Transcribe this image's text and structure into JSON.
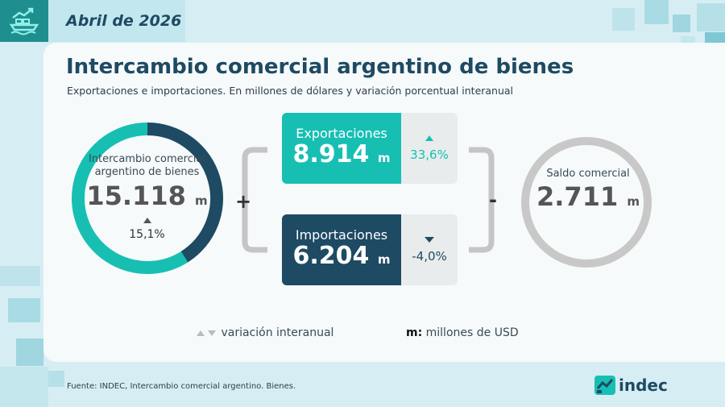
{
  "header": {
    "date": "Abril de 2026",
    "icon": "ship-chart-icon"
  },
  "title": "Intercambio comercial argentino de bienes",
  "subtitle": "Exportaciones e importaciones. En millones de dólares y variación porcentual interanual",
  "chart_data": {
    "type": "pie",
    "title": "Intercambio comercial argentino de bienes",
    "categories": [
      "Exportaciones",
      "Importaciones"
    ],
    "values": [
      8914,
      6204
    ],
    "total": {
      "label": "Intercambio comercial argentino de bienes",
      "value": "15.118",
      "unit": "m",
      "variation": "15,1%",
      "direction": "up"
    },
    "exports": {
      "label": "Exportaciones",
      "value": "8.914",
      "unit": "m",
      "variation": "33,6%",
      "direction": "up"
    },
    "imports": {
      "label": "Importaciones",
      "value": "6.204",
      "unit": "m",
      "variation": "-4,0%",
      "direction": "down"
    },
    "balance": {
      "label": "Saldo comercial",
      "value": "2.711",
      "unit": "m"
    },
    "operators": {
      "plus": "+",
      "minus": "-"
    },
    "colors": {
      "exports": "#17bfb3",
      "imports": "#1e4a63",
      "balance": "#c8c8c8"
    }
  },
  "legend": {
    "variation": "variación interanual",
    "unit_key": "m:",
    "unit_desc": "millones de USD"
  },
  "source": "Fuente: INDEC, Intercambio comercial argentino. Bienes.",
  "logo": {
    "text": "indec"
  }
}
